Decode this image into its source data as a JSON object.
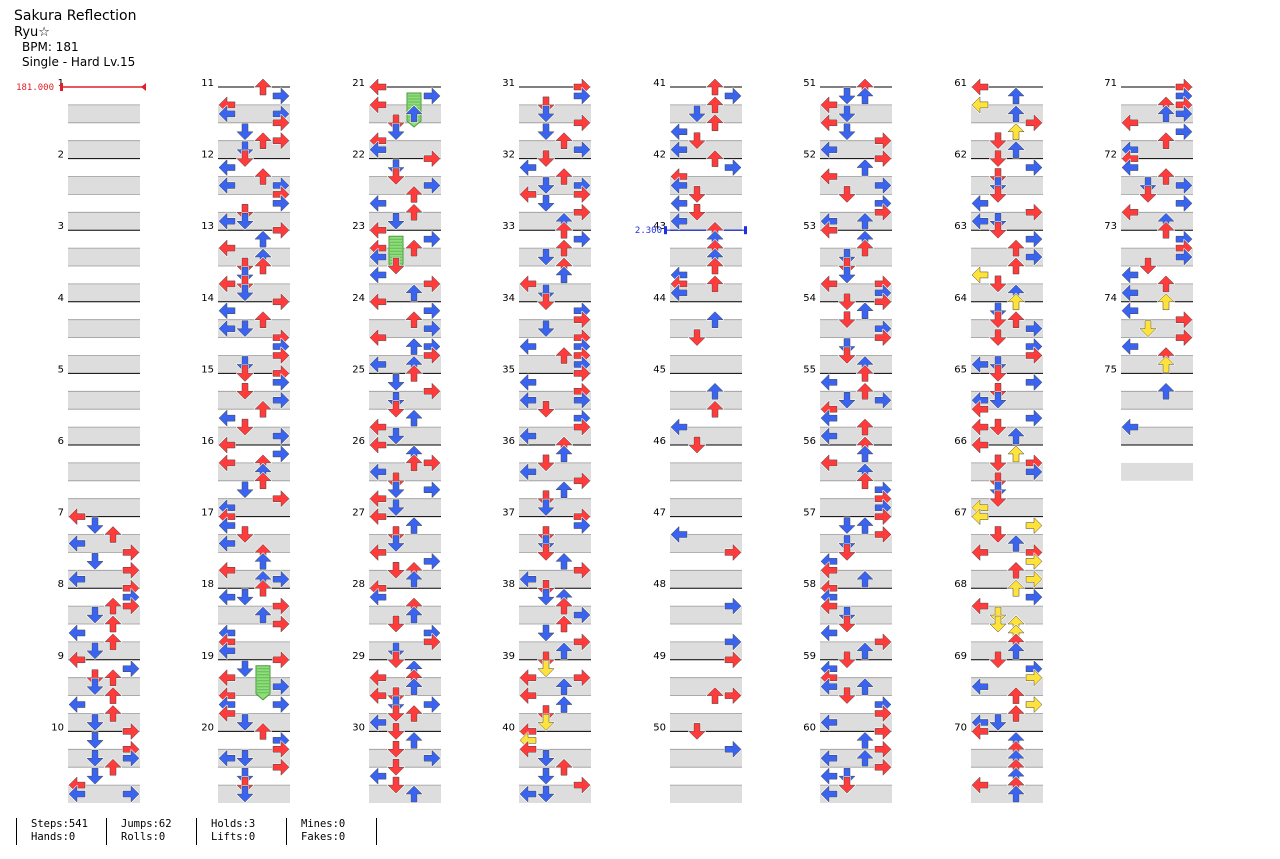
{
  "header": {
    "title": "Sakura Reflection",
    "artist": "Ryu☆",
    "bpm_line": "BPM: 181",
    "difficulty_line": "Single - Hard  Lv.15"
  },
  "colors": {
    "red": "#ff3b3b",
    "blue": "#3a64f0",
    "yellow": "#ffe23a",
    "green_hold": "#8ede7c",
    "bpm_marker": "#e0202a",
    "stop_marker": "#2030e0"
  },
  "chart": {
    "total_measures": 75,
    "measures_per_column": 10,
    "arrow_color_rule": "red=quarter, blue=eighth, yellow=sixteenth",
    "bpm_change": {
      "measure": 1,
      "label": "181.000"
    },
    "stop": {
      "measure": 43,
      "label": "2.300"
    },
    "holds": [
      {
        "measure": 21,
        "lane": 2
      },
      {
        "measure": 23,
        "lane": 1
      },
      {
        "measure": 19,
        "lane": 2
      }
    ]
  },
  "stats": [
    {
      "top": "Steps:541",
      "bottom": "Hands:0"
    },
    {
      "top": "Jumps:62",
      "bottom": "Rolls:0"
    },
    {
      "top": "Holds:3",
      "bottom": "Lifts:0"
    },
    {
      "top": "Mines:0",
      "bottom": "Fakes:0"
    }
  ]
}
